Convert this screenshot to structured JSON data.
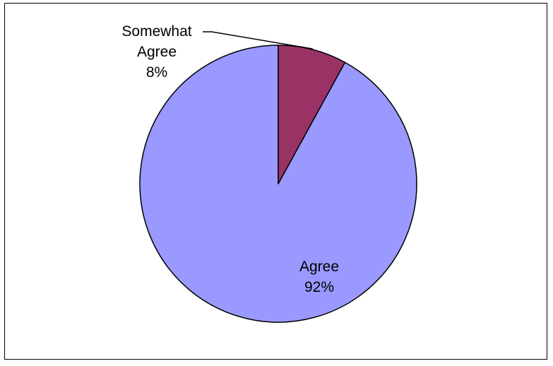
{
  "chart_data": {
    "type": "pie",
    "categories": [
      "Agree",
      "Somewhat Agree"
    ],
    "values": [
      92,
      8
    ],
    "colors": [
      "#9999ff",
      "#993366"
    ],
    "labels": [
      {
        "name_lines": [
          "Agree"
        ],
        "percent": "92%"
      },
      {
        "name_lines": [
          "Somewhat",
          "Agree"
        ],
        "percent": "8%"
      }
    ],
    "start_angle": "12 o'clock",
    "direction": "counterclockwise",
    "legend": "none"
  }
}
